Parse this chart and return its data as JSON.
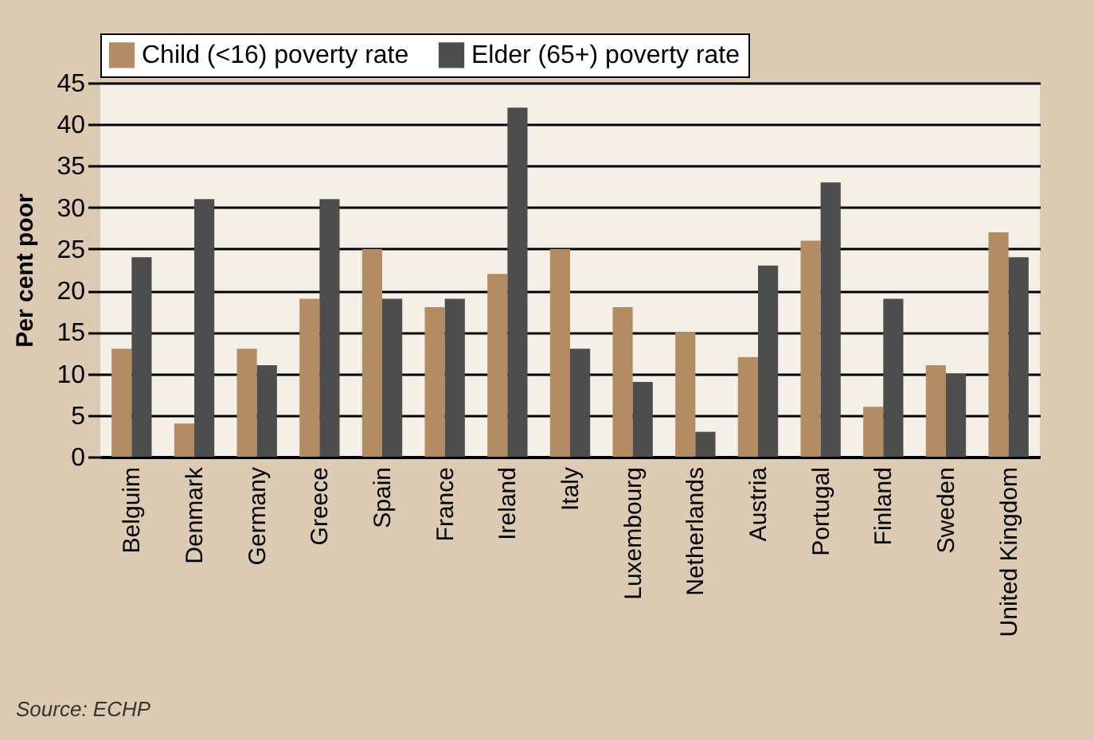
{
  "chart_data": {
    "type": "bar",
    "ylabel": "Per cent poor",
    "categories": [
      "Belguim",
      "Denmark",
      "Germany",
      "Greece",
      "Spain",
      "France",
      "Ireland",
      "Italy",
      "Luxembourg",
      "Netherlands",
      "Austria",
      "Portugal",
      "Finland",
      "Sweden",
      "United Kingdom"
    ],
    "series": [
      {
        "name": "Child (<16) poverty rate",
        "color": "#b48c64",
        "values": [
          13,
          4,
          13,
          19,
          25,
          18,
          22,
          25,
          18,
          15,
          12,
          26,
          6,
          11,
          27
        ]
      },
      {
        "name": "Elder (65+) poverty rate",
        "color": "#4d4d4d",
        "values": [
          24,
          31,
          11,
          31,
          19,
          19,
          42,
          13,
          9,
          3,
          23,
          33,
          19,
          10,
          24
        ]
      }
    ],
    "ylim": [
      0,
      45
    ],
    "yticks": [
      0,
      5,
      10,
      15,
      20,
      25,
      30,
      35,
      40,
      45
    ],
    "grid": "y",
    "legend": "top",
    "annotations": [
      "Source: ECHP"
    ]
  }
}
